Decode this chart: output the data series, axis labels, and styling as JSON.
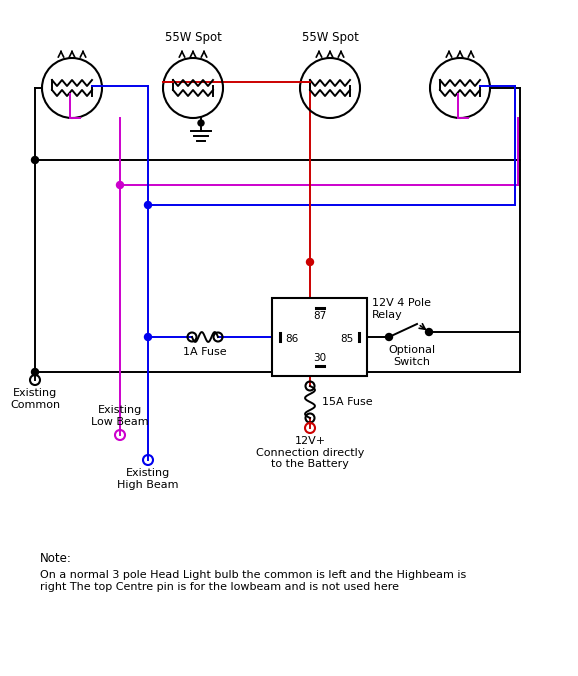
{
  "bg_color": "#ffffff",
  "fig_width": 5.78,
  "fig_height": 6.76,
  "note_text1": "Note:",
  "note_text2": "On a normal 3 pole Head Light bulb the common is left and the Highbeam is\nright The top Centre pin is for the lowbeam and is not used here",
  "label_55w_spot1": "55W Spot",
  "label_55w_spot2": "55W Spot",
  "label_relay": "12V 4 Pole\nRelay",
  "label_1a_fuse": "1A Fuse",
  "label_15a_fuse": "15A Fuse",
  "label_optional_switch": "Optional\nSwitch",
  "label_existing_common": "Existing\nCommon",
  "label_existing_low_beam": "Existing\nLow Beam",
  "label_existing_high_beam": "Existing\nHigh Beam",
  "label_12v": "12V+\nConnection directly\nto the Battery",
  "colors": {
    "black": "#000000",
    "red": "#cc0000",
    "blue": "#0000ee",
    "magenta": "#cc00cc",
    "white": "#ffffff"
  }
}
